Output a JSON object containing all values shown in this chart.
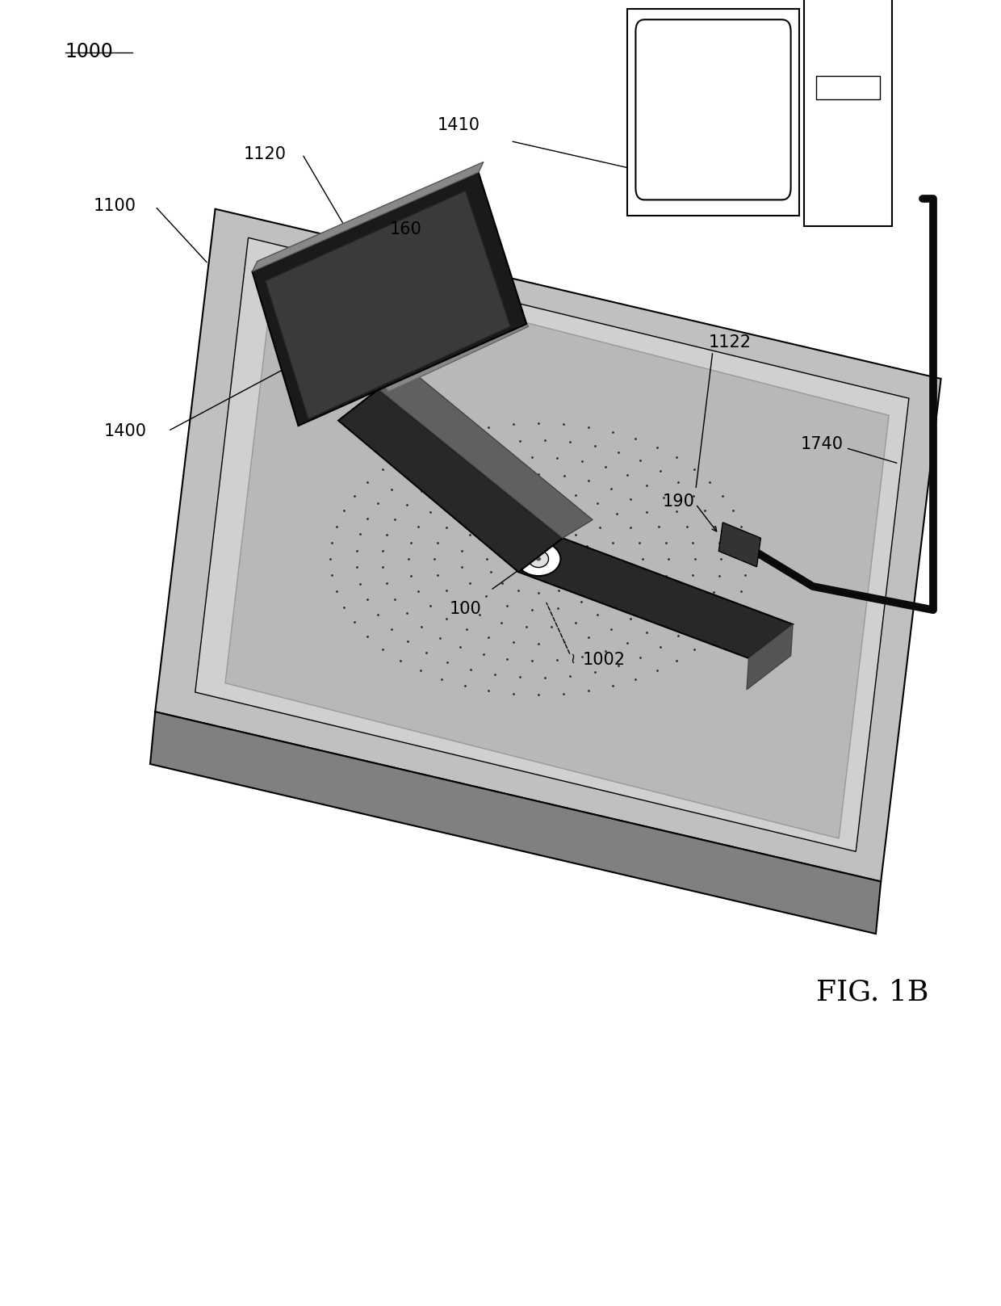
{
  "background_color": "#ffffff",
  "line_color": "#000000",
  "dark_color": "#1a1a1a",
  "mid_gray": "#888888",
  "light_gray": "#cccccc",
  "panel_gray": "#b8b8b8",
  "title": "FIG. 1B",
  "ref_main": "1000"
}
